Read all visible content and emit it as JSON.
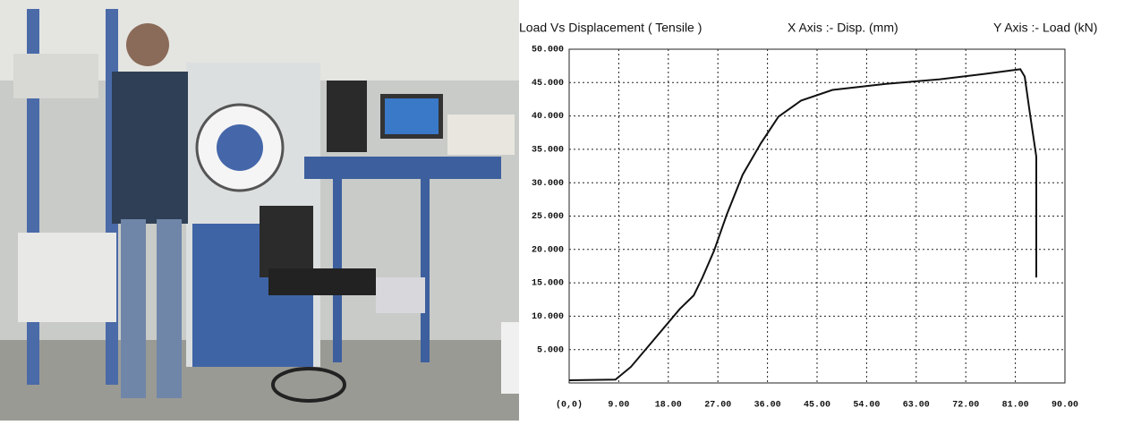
{
  "chart_data": {
    "type": "line",
    "title": "Load Vs Displacement ( Tensile )",
    "x_label": "X Axis :- Disp. (mm)",
    "y_label": "Y Axis :- Load  (kN)",
    "x": [
      0,
      8.4,
      11.2,
      15.3,
      20.1,
      22.6,
      24.2,
      26.3,
      28.6,
      31.5,
      34.8,
      38,
      42.1,
      47.8,
      57.5,
      67.3,
      75.4,
      81.9,
      82.7,
      83.5,
      84.8,
      84.8
    ],
    "values": [
      0.4,
      0.5,
      2.4,
      6.4,
      11.1,
      13.1,
      15.8,
      19.8,
      25.2,
      31.2,
      35.9,
      39.9,
      42.3,
      43.9,
      44.8,
      45.5,
      46.3,
      47,
      45.9,
      41.2,
      33.9,
      15.8
    ],
    "color": "#111111",
    "xlim": [
      0,
      90
    ],
    "ylim": [
      0,
      50
    ],
    "xticks": [
      {
        "value": 0,
        "label": "(0,0)"
      },
      {
        "value": 9,
        "label": "9.00"
      },
      {
        "value": 18,
        "label": "18.00"
      },
      {
        "value": 27,
        "label": "27.00"
      },
      {
        "value": 36,
        "label": "36.00"
      },
      {
        "value": 45,
        "label": "45.00"
      },
      {
        "value": 54,
        "label": "54.00"
      },
      {
        "value": 63,
        "label": "63.00"
      },
      {
        "value": 72,
        "label": "72.00"
      },
      {
        "value": 81,
        "label": "81.00"
      },
      {
        "value": 90,
        "label": "90.00"
      }
    ],
    "yticks": [
      {
        "value": 5,
        "label": "5.000"
      },
      {
        "value": 10,
        "label": "10.000"
      },
      {
        "value": 15,
        "label": "15.000"
      },
      {
        "value": 20,
        "label": "20.000"
      },
      {
        "value": 25,
        "label": "25.000"
      },
      {
        "value": 30,
        "label": "30.000"
      },
      {
        "value": 35,
        "label": "35.000"
      },
      {
        "value": 40,
        "label": "40.000"
      },
      {
        "value": 45,
        "label": "45.000"
      },
      {
        "value": 50,
        "label": "50.000"
      }
    ],
    "grid": true
  }
}
